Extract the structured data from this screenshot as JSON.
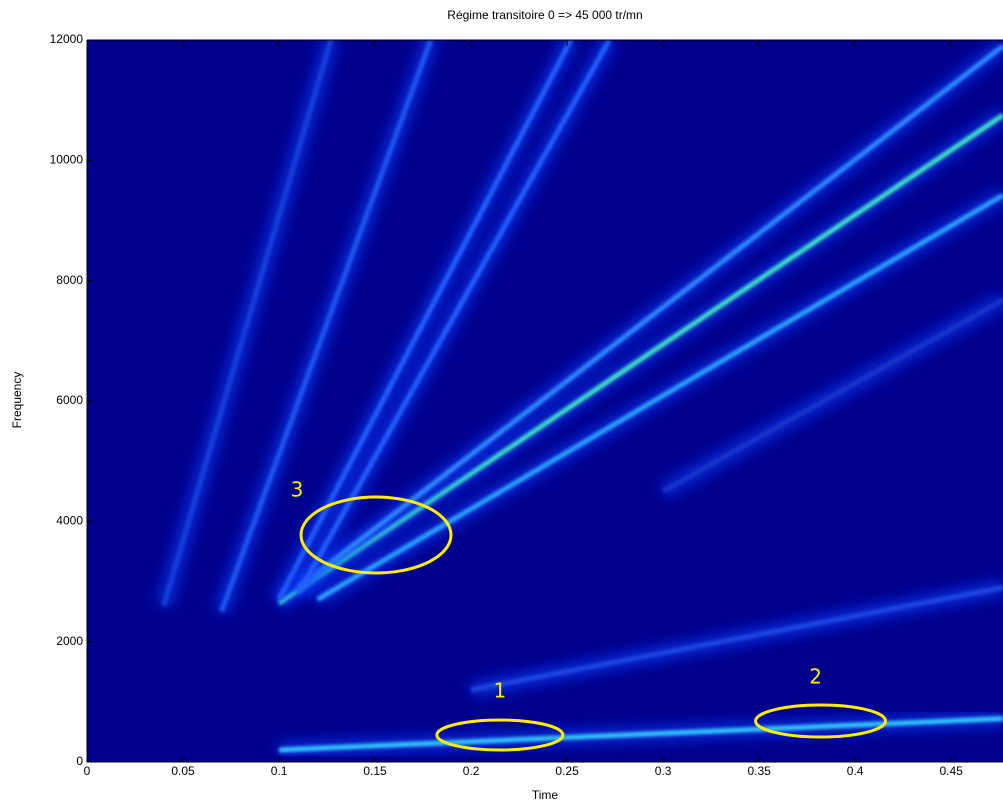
{
  "chart_data": {
    "type": "spectrogram",
    "title": "Régime transitoire 0 => 45 000 tr/mn",
    "x_label": "Time",
    "y_label": "Frequency",
    "xlim": [
      0,
      0.477
    ],
    "ylim": [
      0,
      12000
    ],
    "xticks": [
      0,
      0.05,
      0.1,
      0.15,
      0.2,
      0.25,
      0.3,
      0.35,
      0.4,
      0.45
    ],
    "yticks": [
      0,
      2000,
      4000,
      6000,
      8000,
      10000,
      12000
    ],
    "background": "#00008c",
    "series": [
      {
        "color": "#3fe6c8",
        "x": [
          0.1,
          0.477
        ],
        "y": [
          2640,
          10750
        ]
      },
      {
        "color": "#2f8cff",
        "x": [
          0.11,
          0.477
        ],
        "y": [
          2900,
          11900
        ]
      },
      {
        "color": "#2aa6ff",
        "x": [
          0.12,
          0.477
        ],
        "y": [
          2700,
          9420
        ]
      },
      {
        "color": "#2060ff",
        "x": [
          0.1,
          0.252
        ],
        "y": [
          2700,
          12000
        ]
      },
      {
        "color": "#2060ff",
        "x": [
          0.11,
          0.272
        ],
        "y": [
          2800,
          12000
        ]
      },
      {
        "color": "#1d58f0",
        "x": [
          0.07,
          0.179
        ],
        "y": [
          2500,
          12000
        ]
      },
      {
        "color": "#1640d8",
        "x": [
          0.04,
          0.127
        ],
        "y": [
          2600,
          12000
        ]
      },
      {
        "color": "#35c8ff",
        "x": [
          0.1,
          0.477
        ],
        "y": [
          200,
          720
        ]
      },
      {
        "color": "#1a4ae0",
        "x": [
          0.2,
          0.477
        ],
        "y": [
          1200,
          2900
        ]
      },
      {
        "color": "#1436c8",
        "x": [
          0.3,
          0.477
        ],
        "y": [
          4500,
          7680
        ]
      }
    ],
    "annotations": [
      {
        "text": "1",
        "x": 0.215,
        "y": 449
      },
      {
        "text": "2",
        "x": 0.382,
        "y": 681
      },
      {
        "text": "3",
        "x": 0.1505,
        "y": 3773
      }
    ]
  }
}
